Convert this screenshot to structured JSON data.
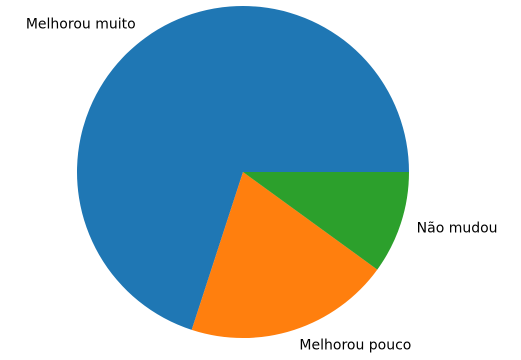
{
  "chart_data": {
    "type": "pie",
    "title": "",
    "categories": [
      "Melhorou muito",
      "Melhorou pouco",
      "Não mudou"
    ],
    "values": [
      70,
      20,
      10
    ],
    "colors": [
      "#1f77b4",
      "#ff7f0e",
      "#2ca02c"
    ],
    "start_angle_deg": 0,
    "direction": "counterclockwise",
    "legend": "none",
    "grid": false
  }
}
